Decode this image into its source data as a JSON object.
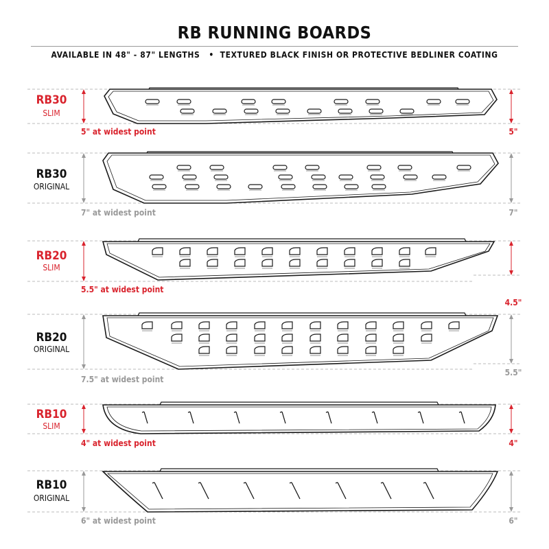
{
  "header": {
    "title": "RB RUNNING BOARDS",
    "subtitle": "AVAILABLE IN 48\" - 87\" LENGTHS   •  TEXTURED BLACK FINISH OR PROTECTIVE BEDLINER COATING"
  },
  "colors": {
    "accent": "#d9232d",
    "muted": "#999999",
    "text": "#111111"
  },
  "boards": [
    {
      "model": "RB30",
      "variant": "SLIM",
      "note": "5\" at widest point",
      "right_dim": "5\"",
      "highlight": true
    },
    {
      "model": "RB30",
      "variant": "ORIGINAL",
      "note": "7\" at widest point",
      "right_dim": "7\"",
      "highlight": false
    },
    {
      "model": "RB20",
      "variant": "SLIM",
      "note": "5.5\" at widest point",
      "right_dim": "4.5\"",
      "highlight": true
    },
    {
      "model": "RB20",
      "variant": "ORIGINAL",
      "note": "7.5\" at widest point",
      "right_dim": "5.5\"",
      "highlight": false
    },
    {
      "model": "RB10",
      "variant": "SLIM",
      "note": "4\" at widest point",
      "right_dim": "4\"",
      "highlight": true
    },
    {
      "model": "RB10",
      "variant": "ORIGINAL",
      "note": "6\" at widest point",
      "right_dim": "6\"",
      "highlight": false
    }
  ]
}
